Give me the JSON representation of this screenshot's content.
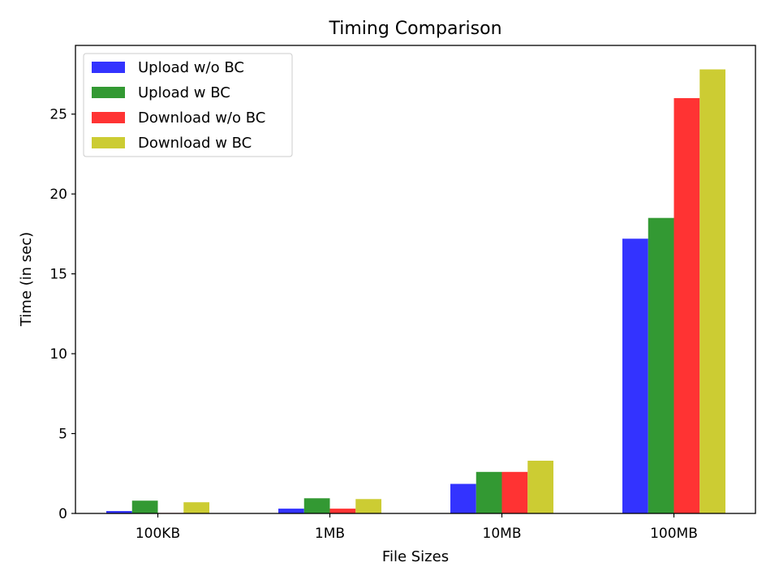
{
  "chart_data": {
    "type": "bar",
    "title": "Timing Comparison",
    "xlabel": "File Sizes",
    "ylabel": "Time (in sec)",
    "categories": [
      "100KB",
      "1MB",
      "10MB",
      "100MB"
    ],
    "ylim": [
      0,
      29.3
    ],
    "yticks": [
      0,
      5,
      10,
      15,
      20,
      25
    ],
    "grid": false,
    "legend_position": "top-left",
    "series": [
      {
        "name": "Upload w/o BC",
        "color": "#3333ff",
        "values": [
          0.15,
          0.3,
          1.85,
          17.2
        ]
      },
      {
        "name": "Upload w BC",
        "color": "#339933",
        "values": [
          0.8,
          0.95,
          2.6,
          18.5
        ]
      },
      {
        "name": "Download w/o BC",
        "color": "#ff3333",
        "values": [
          0.03,
          0.3,
          2.6,
          26.0
        ]
      },
      {
        "name": "Download w BC",
        "color": "#cccc33",
        "values": [
          0.7,
          0.9,
          3.3,
          27.8
        ]
      }
    ]
  }
}
